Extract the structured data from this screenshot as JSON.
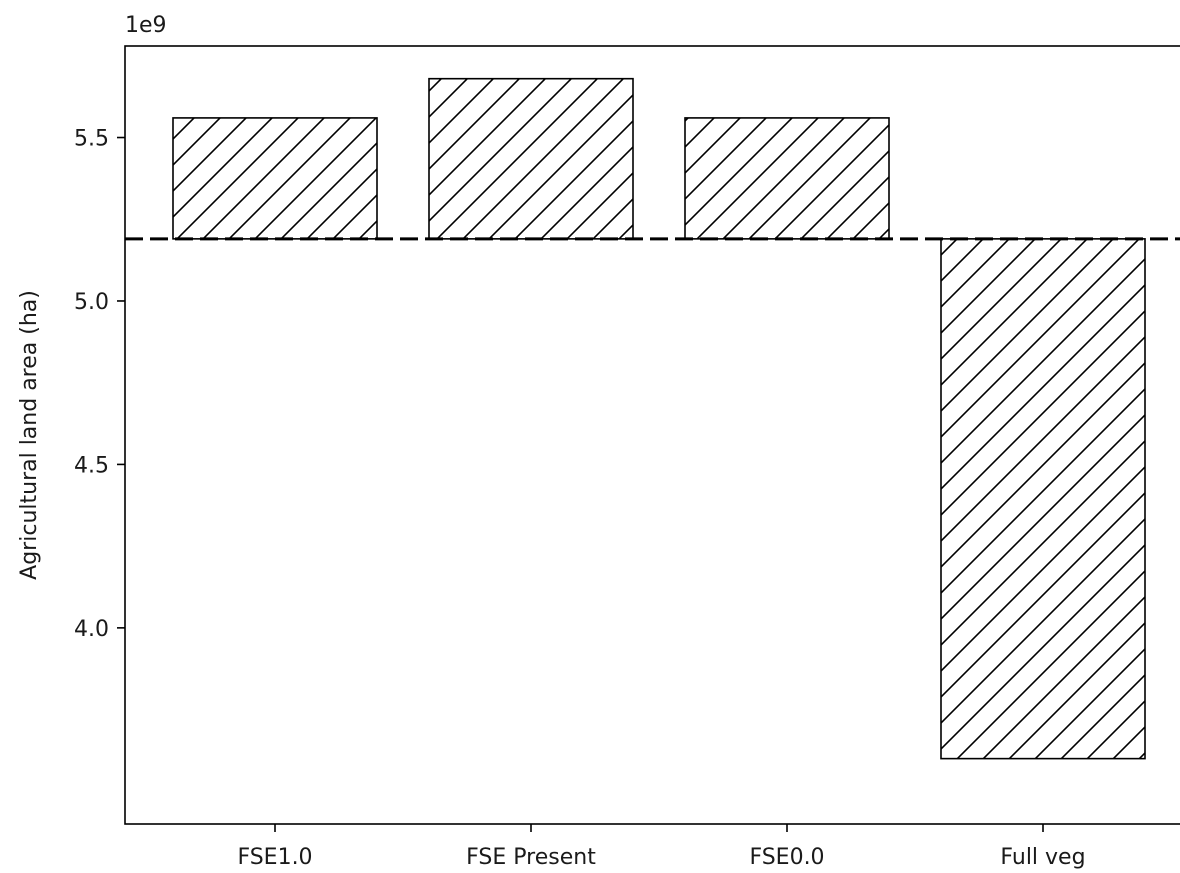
{
  "chart_data": {
    "type": "bar",
    "categories": [
      "FSE1.0",
      "FSE Present",
      "FSE0.0",
      "Full veg"
    ],
    "values": [
      5.56,
      5.68,
      5.56,
      3.6
    ],
    "baseline": 5.19,
    "ylabel": "Agricultural land area (ha)",
    "offset_text": "1e9",
    "ylim": [
      3.4,
      5.78
    ],
    "yticks": [
      4.0,
      4.5,
      5.0,
      5.5
    ],
    "ytick_labels": [
      "4.0",
      "4.5",
      "5.0",
      "5.5"
    ],
    "hatch": "diagonal",
    "bar_fill": "#ffffff",
    "edge_color": "#000000",
    "grid": false,
    "legend": "none"
  }
}
